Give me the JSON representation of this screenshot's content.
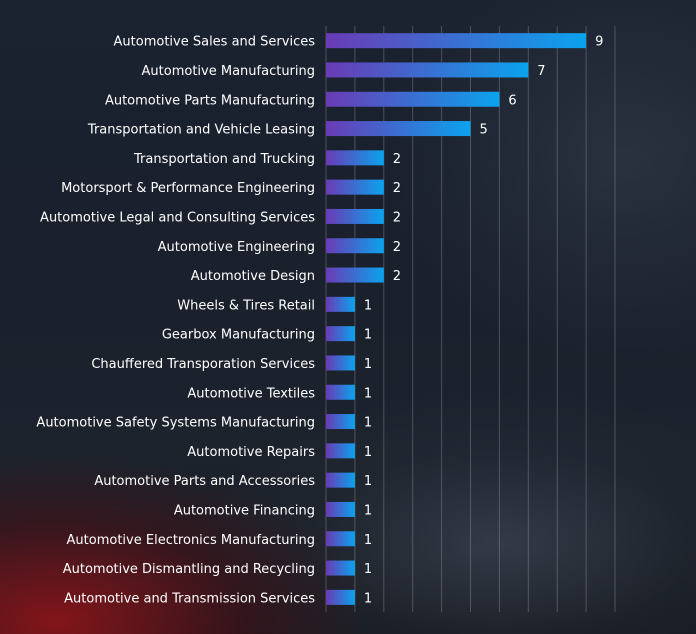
{
  "chart_data": {
    "type": "bar",
    "orientation": "horizontal",
    "title": "",
    "xlabel": "",
    "ylabel": "",
    "categories": [
      "Automotive Sales and Services",
      "Automotive Manufacturing",
      "Automotive Parts Manufacturing",
      "Transportation and Vehicle Leasing",
      "Transportation and Trucking",
      "Motorsport & Performance Engineering",
      "Automotive Legal and Consulting Services",
      "Automotive Engineering",
      "Automotive Design",
      "Wheels & Tires Retail",
      "Gearbox Manufacturing",
      "Chauffered Transporation Services",
      "Automotive Textiles",
      "Automotive Safety Systems Manufacturing",
      "Automotive Repairs",
      "Automotive Parts and Accessories",
      "Automotive Financing",
      "Automotive Electronics Manufacturing",
      "Automotive Dismantling and Recycling",
      "Automotive and Transmission Services"
    ],
    "values": [
      9,
      7,
      6,
      5,
      2,
      2,
      2,
      2,
      2,
      1,
      1,
      1,
      1,
      1,
      1,
      1,
      1,
      1,
      1,
      1
    ],
    "xlim": [
      0,
      10
    ],
    "grid": true,
    "legend": "none",
    "bar_gradient": [
      "#6a3bb5",
      "#0aa3ee"
    ],
    "label_color": "#ffffff"
  }
}
